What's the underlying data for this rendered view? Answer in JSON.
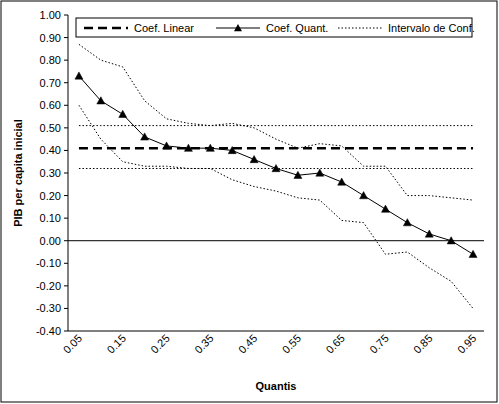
{
  "chart_data": {
    "type": "line",
    "x_label": "Quantis",
    "y_label": "PIB per capita  inicial",
    "categories": [
      "0.05",
      null,
      "0.15",
      null,
      "0.25",
      null,
      "0.35",
      null,
      "0.45",
      null,
      "0.55",
      null,
      "0.65",
      null,
      "0.75",
      null,
      "0.85",
      null,
      "0.95"
    ],
    "ylim": [
      -0.4,
      1.0
    ],
    "yticks": [
      {
        "value": 1.0,
        "label": "1.00"
      },
      {
        "value": 0.9,
        "label": "0.90"
      },
      {
        "value": 0.8,
        "label": "0.80"
      },
      {
        "value": 0.7,
        "label": "0.70"
      },
      {
        "value": 0.6,
        "label": "0.60"
      },
      {
        "value": 0.5,
        "label": "0.50"
      },
      {
        "value": 0.4,
        "label": "0.40"
      },
      {
        "value": 0.3,
        "label": "0.30"
      },
      {
        "value": 0.2,
        "label": "0.20"
      },
      {
        "value": 0.1,
        "label": "0.10"
      },
      {
        "value": 0.0,
        "label": "0.00"
      },
      {
        "value": -0.1,
        "label": "-0.10"
      },
      {
        "value": -0.2,
        "label": "-0.20"
      },
      {
        "value": -0.3,
        "label": "-0.30"
      },
      {
        "value": -0.4,
        "label": "-0.40"
      }
    ],
    "grid": false,
    "legend": "top",
    "series": [
      {
        "name": "Coef. Linear",
        "color": "#000000",
        "line_style": "dashed",
        "marker": "none",
        "values": [
          0.41,
          0.41,
          0.41,
          0.41,
          0.41,
          0.41,
          0.41,
          0.41,
          0.41,
          0.41,
          0.41,
          0.41,
          0.41,
          0.41,
          0.41,
          0.41,
          0.41,
          0.41,
          0.41
        ],
        "lower": [
          0.32,
          0.32,
          0.32,
          0.32,
          0.32,
          0.32,
          0.32,
          0.32,
          0.32,
          0.32,
          0.32,
          0.32,
          0.32,
          0.32,
          0.32,
          0.32,
          0.32,
          0.32,
          0.32
        ],
        "upper": [
          0.51,
          0.51,
          0.51,
          0.51,
          0.51,
          0.51,
          0.51,
          0.51,
          0.51,
          0.51,
          0.51,
          0.51,
          0.51,
          0.51,
          0.51,
          0.51,
          0.51,
          0.51,
          0.51
        ]
      },
      {
        "name": "Coef. Quant.",
        "color": "#000000",
        "line_style": "solid",
        "marker": "triangle",
        "values": [
          0.73,
          0.62,
          0.56,
          0.46,
          0.42,
          0.41,
          0.41,
          0.4,
          0.36,
          0.32,
          0.29,
          0.3,
          0.26,
          0.2,
          0.14,
          0.08,
          0.03,
          0.0,
          -0.06
        ],
        "lower": [
          0.6,
          0.45,
          0.35,
          0.33,
          0.33,
          0.32,
          0.32,
          0.27,
          0.24,
          0.22,
          0.19,
          0.18,
          0.09,
          0.08,
          -0.06,
          -0.05,
          -0.12,
          -0.18,
          -0.3
        ],
        "upper": [
          0.87,
          0.8,
          0.77,
          0.62,
          0.54,
          0.52,
          0.51,
          0.52,
          0.5,
          0.45,
          0.41,
          0.43,
          0.42,
          0.33,
          0.33,
          0.2,
          0.2,
          0.19,
          0.18
        ]
      }
    ],
    "interval": {
      "name": "Intervalo de Conf.",
      "color": "#000000",
      "line_style": "dotted"
    }
  }
}
